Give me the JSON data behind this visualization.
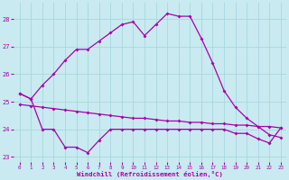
{
  "xlabel": "Windchill (Refroidissement éolien,°C)",
  "bg_color": "#c8eaf0",
  "grid_color": "#a8d8e0",
  "line_color": "#aa00aa",
  "hours": [
    0,
    1,
    2,
    3,
    4,
    5,
    6,
    7,
    8,
    9,
    10,
    11,
    12,
    13,
    14,
    15,
    16,
    17,
    18,
    19,
    20,
    21,
    22,
    23
  ],
  "line_arc": [
    25.3,
    25.1,
    25.6,
    26.0,
    26.5,
    26.9,
    26.9,
    27.2,
    27.5,
    27.8,
    27.9,
    27.4,
    27.8,
    28.2,
    28.1,
    28.1,
    27.3,
    26.4,
    25.4,
    24.8,
    24.4,
    24.1,
    23.8,
    23.7
  ],
  "line_mid": [
    24.9,
    24.85,
    24.8,
    24.75,
    24.7,
    24.65,
    24.6,
    24.55,
    24.5,
    24.45,
    24.4,
    24.4,
    24.35,
    24.3,
    24.3,
    24.25,
    24.25,
    24.2,
    24.2,
    24.15,
    24.15,
    24.1,
    24.1,
    24.05
  ],
  "line_low": [
    25.3,
    25.1,
    24.0,
    24.0,
    23.35,
    23.35,
    23.15,
    23.6,
    24.0,
    24.0,
    24.0,
    24.0,
    24.0,
    24.0,
    24.0,
    24.0,
    24.0,
    24.0,
    24.0,
    23.85,
    23.85,
    23.65,
    23.5,
    24.05
  ],
  "ylim": [
    22.8,
    28.6
  ],
  "yticks": [
    23,
    24,
    25,
    26,
    27,
    28
  ],
  "xlim": [
    -0.5,
    23.5
  ]
}
